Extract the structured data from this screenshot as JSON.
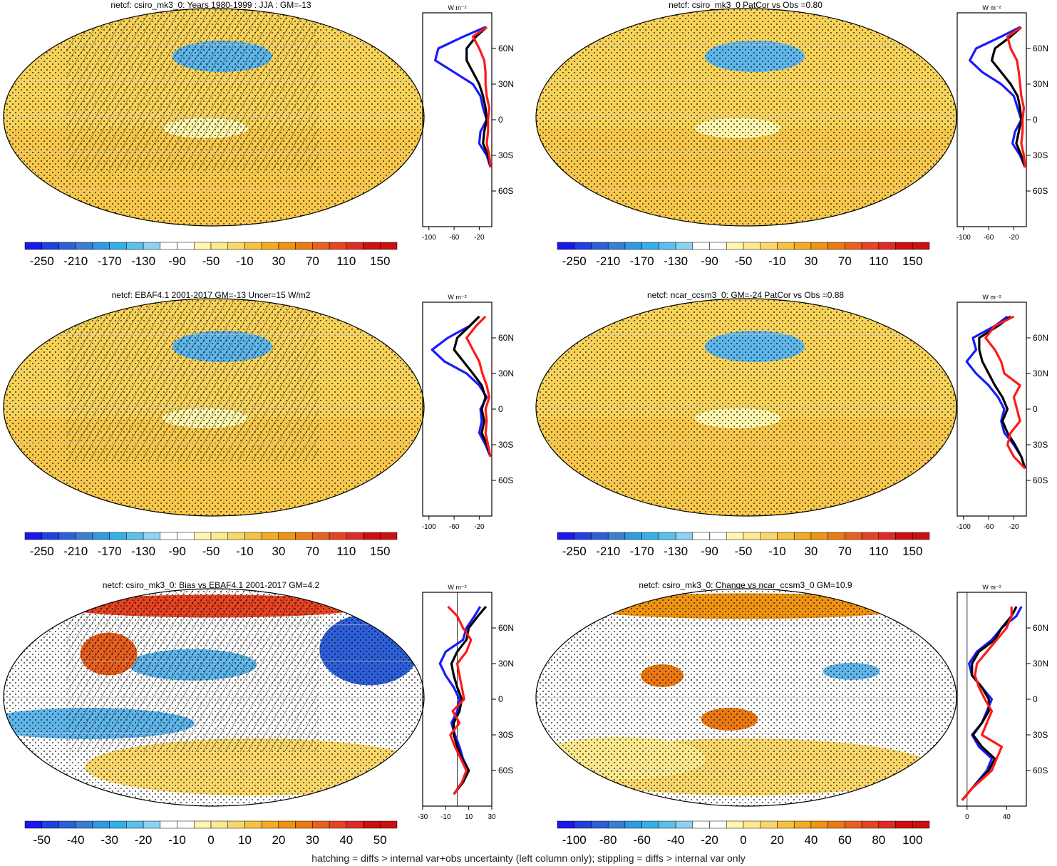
{
  "footnote": "hatching = diffs > internal var+obs uncertainty (left column only); stippling = diffs > internal var only",
  "zonal_units": "W m⁻²",
  "lat_ticks": [
    "60N",
    "30N",
    "0",
    "30S",
    "60S"
  ],
  "colors": {
    "blue_scale": [
      "#1a18e8",
      "#2040e0",
      "#2e5fd8",
      "#3a7ed6",
      "#2f9be2",
      "#32b0ea",
      "#5cc0ec",
      "#8dd2f0"
    ],
    "warm_scale": [
      "#fff6b0",
      "#fde98e",
      "#f9d76a",
      "#f6c242",
      "#f3ab22",
      "#ef9312",
      "#ec7a14",
      "#e9601e",
      "#e64422",
      "#e02a24",
      "#cc0f0f"
    ],
    "ocean_land_pos": "#f8d35a",
    "ocean_neg": "#5fb6ea",
    "zonal_series": [
      "#1a1aff",
      "#000000",
      "#ff1a1a"
    ]
  },
  "chart_data": [
    {
      "type": "heatmap",
      "title": "netcf: csiro_mk3_0: Years 1980-1999 : JJA : GM=-13",
      "colorbar_labels": [
        "-250",
        "-210",
        "-170",
        "-130",
        "-90",
        "-50",
        "-10",
        "30",
        "70",
        "110",
        "150"
      ],
      "zonal": {
        "type": "line",
        "xlim": [
          -110,
          0
        ],
        "xticks": [
          "-100",
          "-60",
          "-20"
        ],
        "ylim": [
          -90,
          90
        ],
        "series": [
          {
            "lat": [
              -40,
              -30,
              -20,
              -10,
              0,
              10,
              20,
              30,
              40,
              50,
              60,
              70,
              78
            ],
            "values": [
              -2,
              -8,
              -20,
              -18,
              -8,
              -14,
              -18,
              -30,
              -60,
              -90,
              -85,
              -45,
              -10
            ]
          },
          {
            "lat": [
              -40,
              -30,
              -20,
              -10,
              0,
              10,
              20,
              30,
              40,
              50,
              60,
              70,
              78
            ],
            "values": [
              -2,
              -6,
              -14,
              -12,
              -8,
              -10,
              -14,
              -20,
              -30,
              -40,
              -40,
              -25,
              -8
            ]
          },
          {
            "lat": [
              -40,
              -30,
              -20,
              -10,
              0,
              10,
              20,
              30,
              40,
              50,
              60,
              70,
              78
            ],
            "values": [
              -2,
              -4,
              -8,
              -6,
              -6,
              -4,
              -8,
              -10,
              -10,
              -12,
              -20,
              -30,
              -8
            ]
          }
        ]
      }
    },
    {
      "type": "heatmap",
      "title": "netcf: csiro_mk3_0 PatCor vs Obs =0.80",
      "colorbar_labels": [
        "-250",
        "-210",
        "-170",
        "-130",
        "-90",
        "-50",
        "-10",
        "30",
        "70",
        "110",
        "150"
      ],
      "zonal": {
        "type": "line",
        "xlim": [
          -110,
          0
        ],
        "xticks": [
          "-100",
          "-60",
          "-20"
        ],
        "ylim": [
          -90,
          90
        ],
        "series": [
          {
            "lat": [
              -40,
              -30,
              -20,
              -10,
              0,
              10,
              20,
              30,
              40,
              50,
              60,
              70,
              78
            ],
            "values": [
              -2,
              -10,
              -22,
              -18,
              -8,
              -14,
              -20,
              -40,
              -70,
              -90,
              -80,
              -40,
              -10
            ]
          },
          {
            "lat": [
              -40,
              -30,
              -20,
              -10,
              0,
              10,
              20,
              30,
              40,
              50,
              60,
              70,
              78
            ],
            "values": [
              -2,
              -8,
              -16,
              -12,
              -8,
              -10,
              -14,
              -25,
              -40,
              -55,
              -50,
              -25,
              -8
            ]
          },
          {
            "lat": [
              -40,
              -30,
              -20,
              -10,
              0,
              10,
              20,
              30,
              40,
              50,
              60,
              70,
              78
            ],
            "values": [
              -2,
              -4,
              -8,
              -6,
              -6,
              -4,
              -8,
              -10,
              -12,
              -15,
              -25,
              -30,
              -8
            ]
          }
        ]
      }
    },
    {
      "type": "heatmap",
      "title": "netcf: EBAF4.1 2001-2017 GM=-13 Uncer=15 W/m2",
      "colorbar_labels": [
        "-250",
        "-210",
        "-170",
        "-130",
        "-90",
        "-50",
        "-10",
        "30",
        "70",
        "110",
        "150"
      ],
      "zonal": {
        "type": "line",
        "xlim": [
          -110,
          0
        ],
        "xticks": [
          "-100",
          "-60",
          "-20"
        ],
        "ylim": [
          -90,
          90
        ],
        "series": [
          {
            "lat": [
              -40,
              -30,
              -20,
              -10,
              0,
              10,
              20,
              30,
              40,
              50,
              60,
              70,
              78
            ],
            "values": [
              -2,
              -10,
              -20,
              -16,
              -18,
              -8,
              -20,
              -40,
              -75,
              -95,
              -70,
              -35,
              -20
            ]
          },
          {
            "lat": [
              -40,
              -30,
              -20,
              -10,
              0,
              10,
              20,
              30,
              40,
              50,
              60,
              70,
              78
            ],
            "values": [
              -2,
              -8,
              -16,
              -12,
              -16,
              -10,
              -16,
              -30,
              -45,
              -60,
              -55,
              -35,
              -20
            ]
          },
          {
            "lat": [
              -40,
              -30,
              -20,
              -10,
              0,
              10,
              20,
              30,
              40,
              50,
              60,
              70,
              78
            ],
            "values": [
              -2,
              -6,
              -10,
              -8,
              -10,
              -4,
              -8,
              -15,
              -20,
              -30,
              -40,
              -25,
              -10
            ]
          }
        ]
      }
    },
    {
      "type": "heatmap",
      "title": "netcf: ncar_ccsm3_0: GM=-24 PatCor vs Obs =0.88",
      "colorbar_labels": [
        "-250",
        "-210",
        "-170",
        "-130",
        "-90",
        "-50",
        "-10",
        "30",
        "70",
        "110",
        "150"
      ],
      "zonal": {
        "type": "line",
        "xlim": [
          -110,
          0
        ],
        "xticks": [
          "-100",
          "-60",
          "-20"
        ],
        "ylim": [
          -90,
          90
        ],
        "series": [
          {
            "lat": [
              -50,
              -40,
              -30,
              -20,
              -10,
              0,
              10,
              20,
              30,
              40,
              50,
              60,
              70,
              78
            ],
            "values": [
              -2,
              -8,
              -20,
              -35,
              -40,
              -35,
              -45,
              -60,
              -80,
              -95,
              -80,
              -85,
              -50,
              -30
            ]
          },
          {
            "lat": [
              -50,
              -40,
              -30,
              -20,
              -10,
              0,
              10,
              20,
              30,
              40,
              50,
              60,
              70,
              78
            ],
            "values": [
              -2,
              -8,
              -18,
              -30,
              -38,
              -30,
              -38,
              -50,
              -60,
              -70,
              -75,
              -75,
              -45,
              -25
            ]
          },
          {
            "lat": [
              -50,
              -40,
              -30,
              -20,
              -10,
              0,
              10,
              20,
              30,
              40,
              50,
              60,
              70,
              78
            ],
            "values": [
              -2,
              -20,
              -30,
              -25,
              -10,
              -15,
              -20,
              -10,
              -35,
              -40,
              -50,
              -65,
              -50,
              -20
            ]
          }
        ]
      }
    },
    {
      "type": "heatmap",
      "title": "netcf: csiro_mk3_0: Bias vs EBAF4.1 2001-2017 GM=4.2",
      "colorbar_labels": [
        "-50",
        "-40",
        "-30",
        "-20",
        "-10",
        "0",
        "10",
        "20",
        "30",
        "40",
        "50"
      ],
      "zonal": {
        "type": "line",
        "xlim": [
          -30,
          30
        ],
        "xticks": [
          "-30",
          "-10",
          "10",
          "30"
        ],
        "ylim": [
          -90,
          90
        ],
        "series": [
          {
            "lat": [
              -80,
              -70,
              -60,
              -50,
              -40,
              -30,
              -20,
              -10,
              0,
              10,
              20,
              30,
              40,
              50,
              60,
              70,
              78
            ],
            "values": [
              -3,
              5,
              10,
              5,
              2,
              -2,
              -5,
              0,
              2,
              -3,
              -10,
              -15,
              -10,
              5,
              8,
              15,
              20
            ]
          },
          {
            "lat": [
              -80,
              -70,
              -60,
              -50,
              -40,
              -30,
              -20,
              -10,
              0,
              10,
              20,
              30,
              40,
              50,
              60,
              70,
              78
            ],
            "values": [
              -3,
              5,
              10,
              4,
              0,
              -3,
              -3,
              2,
              4,
              0,
              -3,
              -5,
              0,
              8,
              10,
              18,
              25
            ]
          },
          {
            "lat": [
              -80,
              -70,
              -60,
              -50,
              -40,
              -30,
              -20,
              -10,
              0,
              10,
              20,
              30,
              40,
              50,
              60,
              70,
              78
            ],
            "values": [
              -3,
              4,
              8,
              3,
              -2,
              -6,
              2,
              -4,
              6,
              4,
              2,
              0,
              8,
              12,
              5,
              0,
              -8
            ]
          }
        ]
      }
    },
    {
      "type": "heatmap",
      "title": "netcf: csiro_mk3_0: Change vs ncar_ccsm3_0 GM=10.9",
      "colorbar_labels": [
        "-100",
        "-80",
        "-60",
        "-40",
        "-20",
        "0",
        "20",
        "40",
        "60",
        "80",
        "100"
      ],
      "zonal": {
        "type": "line",
        "xlim": [
          -10,
          60
        ],
        "xticks": [
          "0",
          "40"
        ],
        "ylim": [
          -90,
          90
        ],
        "series": [
          {
            "lat": [
              -85,
              -75,
              -60,
              -50,
              -40,
              -30,
              -20,
              -10,
              0,
              10,
              20,
              30,
              40,
              50,
              60,
              70,
              78
            ],
            "values": [
              -5,
              5,
              20,
              25,
              12,
              5,
              15,
              20,
              25,
              15,
              5,
              2,
              10,
              25,
              35,
              50,
              55
            ]
          },
          {
            "lat": [
              -85,
              -75,
              -60,
              -50,
              -40,
              -30,
              -20,
              -10,
              0,
              10,
              20,
              30,
              40,
              50,
              60,
              70,
              78
            ],
            "values": [
              -5,
              5,
              22,
              28,
              15,
              6,
              15,
              22,
              22,
              15,
              5,
              5,
              12,
              28,
              35,
              45,
              50
            ]
          },
          {
            "lat": [
              -85,
              -75,
              -60,
              -50,
              -40,
              -30,
              -20,
              -10,
              0,
              10,
              20,
              30,
              40,
              50,
              60,
              70,
              78
            ],
            "values": [
              -5,
              5,
              25,
              30,
              35,
              15,
              20,
              25,
              18,
              12,
              8,
              10,
              20,
              30,
              40,
              45,
              45
            ]
          }
        ]
      }
    }
  ]
}
